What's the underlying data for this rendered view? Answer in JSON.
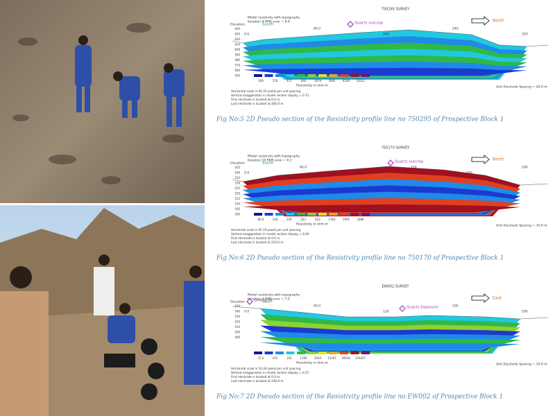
{
  "figures": [
    {
      "survey": "750295 SURVEY",
      "model_title": "Model resistivity with topography",
      "iteration": "Iteration 4 RMS error = 8.9",
      "elevation_label": "Elevation",
      "elevations": [
        "640",
        "630",
        "620",
        "610",
        "600",
        "590",
        "580",
        "570",
        "560",
        "550"
      ],
      "distances": [
        "0.0",
        "80.0",
        "160",
        "240",
        "320"
      ],
      "left_dir": "South",
      "right_dir": "North",
      "markers": [
        "Quartz outcrop"
      ],
      "legend_values": [
        "169",
        "276",
        "427",
        "644",
        "1679",
        "3902",
        "6529",
        "12611"
      ],
      "legend_label": "Resistivity in ohm.m",
      "notes": [
        "Horizontal scale is 64.35 pixels per unit spacing",
        "Vertical exaggeration in model section display = 0.71",
        "First electrode is located at 0.0 m.",
        "Last electrode is located at 400.0 m."
      ],
      "unit_spacing": "Unit Electrode Spacing = 20.0 m.",
      "caption": "Fig No:5  2D  Pseudo section of the Resistivity profile line no 750295 of Prospective Block 1"
    },
    {
      "survey": "750170 SURVEY",
      "model_title": "Model resistivity with topography",
      "iteration": "Iteration 10 RMS error = 6.1",
      "elevation_label": "Elevation",
      "elevations": [
        "545",
        "540",
        "535",
        "530",
        "525",
        "520",
        "515",
        "510",
        "505",
        "500"
      ],
      "distances": [
        "0.0",
        "40.0",
        "80.0",
        "120",
        "160",
        "200"
      ],
      "left_dir": "South",
      "right_dir": "North",
      "markers": [
        "Quartz outcrop"
      ],
      "legend_values": [
        "80.6",
        "146",
        "245",
        "411",
        "652",
        "1163",
        "1955",
        "3286"
      ],
      "legend_label": "Resistivity in ohm.m",
      "notes": [
        "Horizontal scale is 61.19 pixels per unit spacing",
        "Vertical exaggeration in model section display = 0.60",
        "First electrode is located at 0.0 m.",
        "Last electrode is located at 210.0 m."
      ],
      "unit_spacing": "Unit Electrode Spacing = 10.0 m.",
      "caption": "Fig No:6  2D  Pseudo section of the Resistivity profile line no 750170 of Prospective Block 1"
    },
    {
      "survey": "EW002 SURVEY",
      "model_title": "Model resistivity with topography",
      "iteration": "Iteration 5 RMS error = 7.5",
      "elevation_label": "Elevation",
      "elevations": [
        "550",
        "540",
        "530",
        "520",
        "510",
        "500",
        "490"
      ],
      "distances": [
        "0.0",
        "40.0",
        "120",
        "160",
        "200"
      ],
      "left_dir": "West",
      "right_dir": "East",
      "markers": [
        "Quartz Pit",
        "Quartz Exposure"
      ],
      "legend_values": [
        "37.0",
        "101",
        "342",
        "1160",
        "3934",
        "13167",
        "44542",
        "150427"
      ],
      "legend_label": "Resistivity in ohm.m",
      "notes": [
        "Horizontal scale is 53.34 pixels per unit spacing",
        "Vertical exaggeration in model section display = 0.57",
        "First electrode is located at 0.0 m.",
        "Last electrode is located at 240.0 m."
      ],
      "unit_spacing": "Unit Electrode Spacing = 10.0 m.",
      "caption": "Fig No:7  2D  Pseudo section of the Resistivity profile line no EW002 of Prospective Block 1"
    }
  ]
}
